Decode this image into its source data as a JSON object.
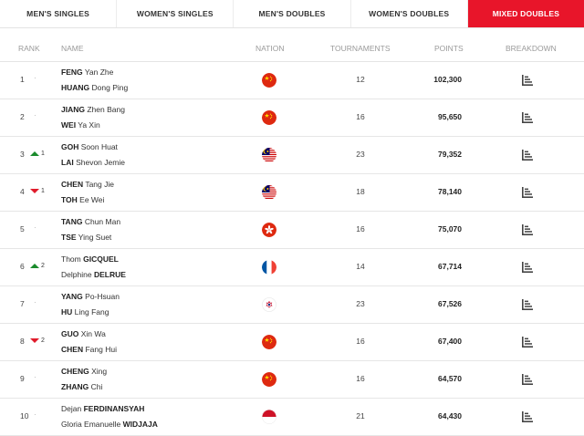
{
  "tabs": [
    {
      "label": "MEN'S SINGLES",
      "active": false
    },
    {
      "label": "WOMEN'S SINGLES",
      "active": false
    },
    {
      "label": "MEN'S DOUBLES",
      "active": false
    },
    {
      "label": "WOMEN'S DOUBLES",
      "active": false
    },
    {
      "label": "MIXED DOUBLES",
      "active": true
    }
  ],
  "columns": {
    "rank": "RANK",
    "name": "NAME",
    "nation": "NATION",
    "tournaments": "TOURNAMENTS",
    "points": "POINTS",
    "breakdown": "BREAKDOWN"
  },
  "colors": {
    "accent": "#e8152a",
    "up": "#1a8b2c",
    "down": "#e01b2b"
  },
  "rows": [
    {
      "rank": "1",
      "movement": "none",
      "change": "",
      "p1_family": "FENG",
      "p1_given": "Yan Zhe",
      "p2_family": "HUANG",
      "p2_given": "Dong Ping",
      "nation_icon": "china-flag-icon",
      "tournaments": "12",
      "points": "102,300"
    },
    {
      "rank": "2",
      "movement": "none",
      "change": "",
      "p1_family": "JIANG",
      "p1_given": "Zhen Bang",
      "p2_family": "WEI",
      "p2_given": "Ya Xin",
      "nation_icon": "china-flag-icon",
      "tournaments": "16",
      "points": "95,650"
    },
    {
      "rank": "3",
      "movement": "up",
      "change": "1",
      "p1_family": "GOH",
      "p1_given": "Soon Huat",
      "p2_family": "LAI",
      "p2_given": "Shevon Jemie",
      "nation_icon": "malaysia-flag-icon",
      "tournaments": "23",
      "points": "79,352"
    },
    {
      "rank": "4",
      "movement": "down",
      "change": "1",
      "p1_family": "CHEN",
      "p1_given": "Tang Jie",
      "p2_family": "TOH",
      "p2_given": "Ee Wei",
      "nation_icon": "malaysia-flag-icon",
      "tournaments": "18",
      "points": "78,140"
    },
    {
      "rank": "5",
      "movement": "none",
      "change": "",
      "p1_family": "TANG",
      "p1_given": "Chun Man",
      "p2_family": "TSE",
      "p2_given": "Ying Suet",
      "nation_icon": "hong-kong-flag-icon",
      "tournaments": "16",
      "points": "75,070"
    },
    {
      "rank": "6",
      "movement": "up",
      "change": "2",
      "p1_given_first": "Thom",
      "p1_family_last": "GICQUEL",
      "p2_given_first": "Delphine",
      "p2_family_last": "DELRUE",
      "nation_icon": "france-flag-icon",
      "tournaments": "14",
      "points": "67,714"
    },
    {
      "rank": "7",
      "movement": "none",
      "change": "",
      "p1_family": "YANG",
      "p1_given": "Po-Hsuan",
      "p2_family": "HU",
      "p2_given": "Ling Fang",
      "nation_icon": "chinese-taipei-flag-icon",
      "tournaments": "23",
      "points": "67,526"
    },
    {
      "rank": "8",
      "movement": "down",
      "change": "2",
      "p1_family": "GUO",
      "p1_given": "Xin Wa",
      "p2_family": "CHEN",
      "p2_given": "Fang Hui",
      "nation_icon": "china-flag-icon",
      "tournaments": "16",
      "points": "67,400"
    },
    {
      "rank": "9",
      "movement": "none",
      "change": "",
      "p1_family": "CHENG",
      "p1_given": "Xing",
      "p2_family": "ZHANG",
      "p2_given": "Chi",
      "nation_icon": "china-flag-icon",
      "tournaments": "16",
      "points": "64,570"
    },
    {
      "rank": "10",
      "movement": "none",
      "change": "",
      "p1_given_first": "Dejan",
      "p1_family_last": "FERDINANSYAH",
      "p2_given_first": "Gloria Emanuelle",
      "p2_family_last": "WIDJAJA",
      "nation_icon": "indonesia-flag-icon",
      "tournaments": "21",
      "points": "64,430"
    }
  ]
}
